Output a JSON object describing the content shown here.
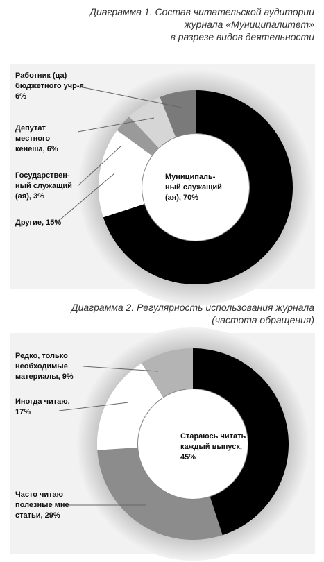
{
  "charts": [
    {
      "type": "donut",
      "title": [
        "Диаграмма 1. Состав читательской аудитории",
        "журнала «Муниципалитет»",
        "в разрезе видов деятельности"
      ],
      "categories": [
        "Муниципаль-ный служащий (ая),",
        "Другие,",
        "Государствен-ный служащий (ая),",
        "Депутат местного кенеша,",
        "Работник (ца) бюджетного учр-я,"
      ],
      "values": [
        70,
        15,
        3,
        6,
        6
      ],
      "value_labels": [
        "70%",
        "15%",
        "3%",
        "6%",
        "6%"
      ],
      "colors": [
        "#000000",
        "#ffffff",
        "#9a9a9a",
        "#d6d6d6",
        "#7a7a7a"
      ]
    },
    {
      "type": "donut",
      "title": [
        "Диаграмма 2. Регулярность использования журнала",
        "(частота обращения)"
      ],
      "categories": [
        "Стараюсь читать каждый выпуск,",
        "Часто читаю полезные мне статьи,",
        "Иногда читаю,",
        "Редко, только необходимые материалы,"
      ],
      "values": [
        45,
        29,
        17,
        9
      ],
      "value_labels": [
        "45%",
        "29%",
        "17%",
        "9%"
      ],
      "colors": [
        "#000000",
        "#8c8c8c",
        "#ffffff",
        "#b4b4b4"
      ]
    }
  ]
}
